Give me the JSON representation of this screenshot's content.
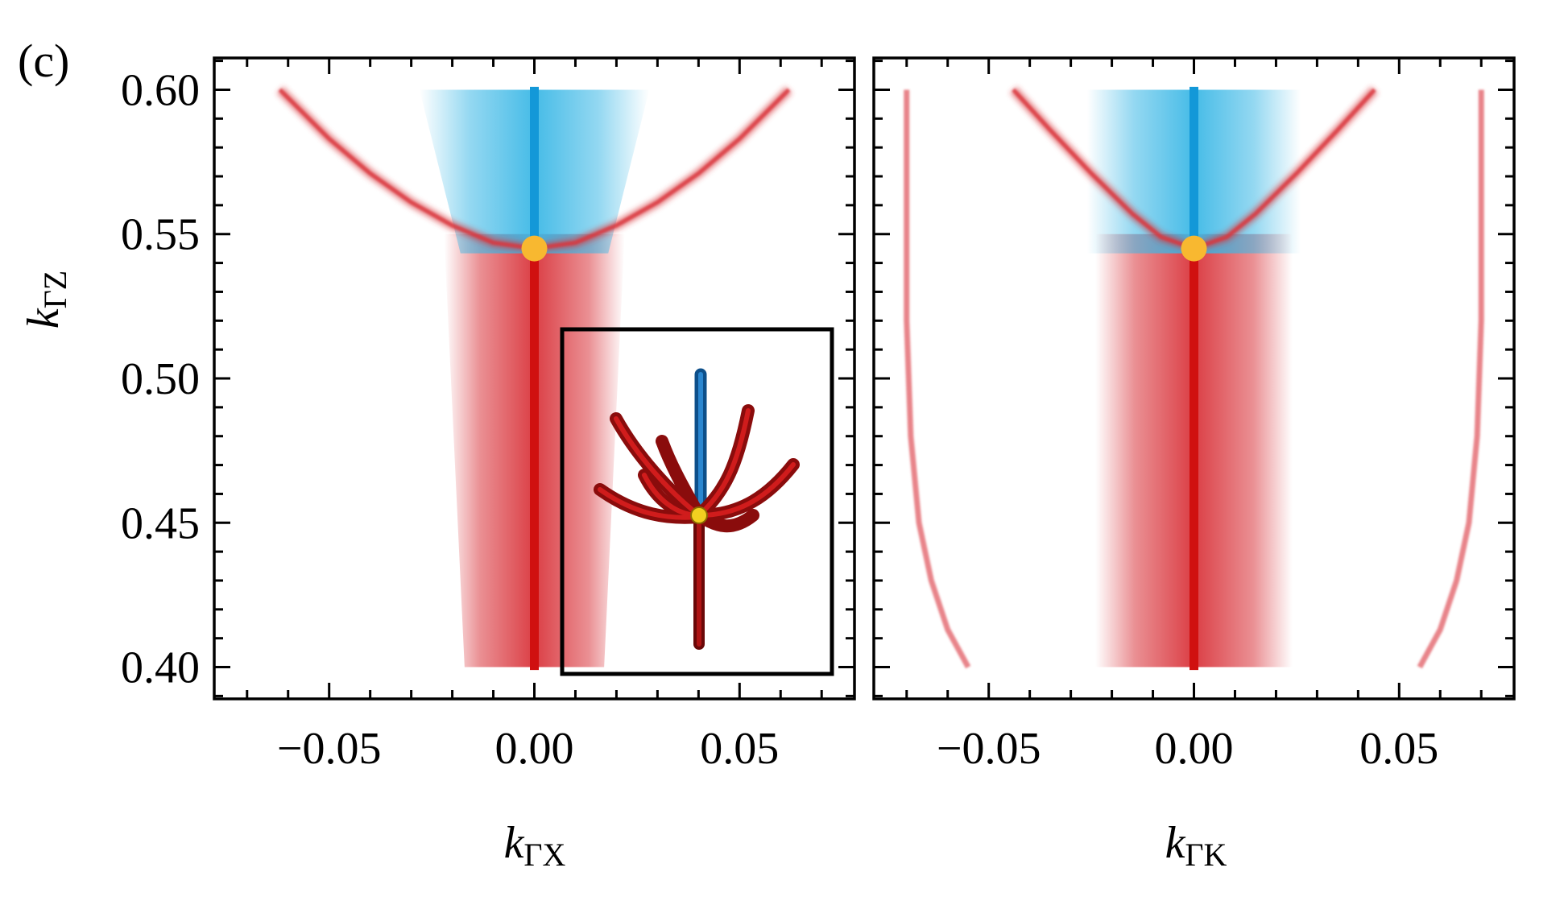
{
  "panel_label": "(c)",
  "colors": {
    "red_band": "#d9343b",
    "red_line": "#d01010",
    "blue_band": "#3cb8e6",
    "blue_line": "#1398d8",
    "node": "#f8b830",
    "axis": "#000000"
  },
  "chart_data": [
    {
      "type": "line",
      "name": "left-panel",
      "xlabel_main": "k",
      "xlabel_sub": "ΓX",
      "ylabel_main": "k",
      "ylabel_sub": "ΓZ",
      "xlim": [
        -0.078,
        0.078
      ],
      "ylim": [
        0.389,
        0.611
      ],
      "xticks": [
        -0.05,
        0.0,
        0.05
      ],
      "xtick_labels": [
        "−0.05",
        "0.00",
        "0.05"
      ],
      "yticks": [
        0.4,
        0.45,
        0.5,
        0.55,
        0.6
      ],
      "ytick_labels": [
        "0.40",
        "0.45",
        "0.50",
        "0.55",
        "0.60"
      ],
      "node": {
        "x": 0.0,
        "y": 0.545
      },
      "blue_line": {
        "x": 0.0,
        "y": [
          0.545,
          0.601
        ]
      },
      "red_line": {
        "x": 0.0,
        "y": [
          0.399,
          0.545
        ]
      },
      "red_curve": {
        "vertex_y": 0.545,
        "x": [
          -0.062,
          -0.05,
          -0.04,
          -0.03,
          -0.02,
          -0.01,
          0.0,
          0.01,
          0.02,
          0.03,
          0.04,
          0.05,
          0.062
        ],
        "y": [
          0.6,
          0.583,
          0.571,
          0.561,
          0.553,
          0.547,
          0.545,
          0.547,
          0.553,
          0.561,
          0.571,
          0.583,
          0.6
        ]
      },
      "blue_region": {
        "y_range": [
          0.545,
          0.6
        ],
        "half_width_top": 0.028,
        "half_width_bottom": 0.018
      },
      "red_region": {
        "y_range": [
          0.4,
          0.55
        ],
        "half_width_top": 0.022,
        "half_width_bottom": 0.017
      },
      "inset": true
    },
    {
      "type": "line",
      "name": "right-panel",
      "xlabel_main": "k",
      "xlabel_sub": "ΓK",
      "xlim": [
        -0.078,
        0.078
      ],
      "ylim": [
        0.389,
        0.611
      ],
      "xticks": [
        -0.05,
        0.0,
        0.05
      ],
      "xtick_labels": [
        "−0.05",
        "0.00",
        "0.05"
      ],
      "yticks": [
        0.4,
        0.45,
        0.5,
        0.55,
        0.6
      ],
      "node": {
        "x": 0.0,
        "y": 0.545
      },
      "blue_line": {
        "x": 0.0,
        "y": [
          0.545,
          0.601
        ]
      },
      "red_line": {
        "x": 0.0,
        "y": [
          0.399,
          0.545
        ]
      },
      "red_curve": {
        "vertex_y": 0.545,
        "x": [
          -0.044,
          -0.035,
          -0.025,
          -0.015,
          -0.008,
          0.0,
          0.008,
          0.015,
          0.025,
          0.035,
          0.044
        ],
        "y": [
          0.6,
          0.586,
          0.571,
          0.557,
          0.549,
          0.545,
          0.549,
          0.557,
          0.571,
          0.586,
          0.6
        ]
      },
      "side_curves": [
        {
          "x": [
            -0.07,
            -0.07,
            -0.069,
            -0.067,
            -0.064,
            -0.06,
            -0.055
          ],
          "y": [
            0.6,
            0.52,
            0.48,
            0.45,
            0.43,
            0.413,
            0.4
          ]
        },
        {
          "x": [
            0.07,
            0.07,
            0.069,
            0.067,
            0.064,
            0.06,
            0.055
          ],
          "y": [
            0.6,
            0.52,
            0.48,
            0.45,
            0.43,
            0.413,
            0.4
          ]
        }
      ],
      "blue_region": {
        "y_range": [
          0.545,
          0.6
        ],
        "half_width_top": 0.026,
        "half_width_bottom": 0.026
      },
      "red_region": {
        "y_range": [
          0.4,
          0.55
        ],
        "half_width_top": 0.024,
        "half_width_bottom": 0.024
      }
    }
  ]
}
